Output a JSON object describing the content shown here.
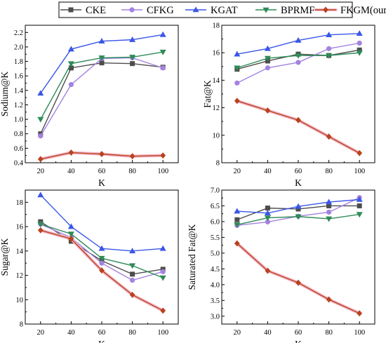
{
  "legend": {
    "entries": [
      {
        "name": "CKE",
        "color": "#4d4d4d",
        "marker": "square"
      },
      {
        "name": "CFKG",
        "color": "#a382e0",
        "marker": "circle"
      },
      {
        "name": "KGAT",
        "color": "#3a57e6",
        "marker": "triangle-up"
      },
      {
        "name": "BPRMF",
        "color": "#2e8b57",
        "marker": "triangle-down"
      },
      {
        "name": "FKGM(ours)",
        "color": "#b8431f",
        "marker": "diamond",
        "highlight": "#f5b8c8"
      }
    ]
  },
  "chart_data": [
    {
      "type": "line",
      "xlabel": "K",
      "ylabel": "Sodium@K",
      "x": [
        20,
        40,
        60,
        80,
        100
      ],
      "xlim": [
        10,
        110
      ],
      "ylim": [
        0.4,
        2.3
      ],
      "yticks": [
        0.4,
        0.6,
        0.8,
        1.0,
        1.2,
        1.4,
        1.6,
        1.8,
        2.0,
        2.2
      ],
      "ytick_labels": [
        "0.4",
        "0.6",
        "0.8",
        "1.0",
        "1.2",
        "1.4",
        "1.6",
        "1.8",
        "2.0",
        "2.2"
      ],
      "series": [
        {
          "name": "CKE",
          "values": [
            0.8,
            1.71,
            1.78,
            1.77,
            1.72
          ]
        },
        {
          "name": "CFKG",
          "values": [
            0.77,
            1.48,
            1.84,
            1.85,
            1.71
          ]
        },
        {
          "name": "KGAT",
          "values": [
            1.36,
            1.97,
            2.08,
            2.1,
            2.17
          ]
        },
        {
          "name": "BPRMF",
          "values": [
            1.0,
            1.77,
            1.85,
            1.86,
            1.93
          ]
        },
        {
          "name": "FKGM(ours)",
          "values": [
            0.45,
            0.54,
            0.52,
            0.49,
            0.5
          ]
        }
      ]
    },
    {
      "type": "line",
      "xlabel": "K",
      "ylabel": "Fat@K",
      "x": [
        20,
        40,
        60,
        80,
        100
      ],
      "xlim": [
        10,
        110
      ],
      "ylim": [
        8,
        18
      ],
      "yticks": [
        8,
        10,
        12,
        14,
        16,
        18
      ],
      "ytick_labels": [
        "8",
        "10",
        "12",
        "14",
        "16",
        "18"
      ],
      "series": [
        {
          "name": "CKE",
          "values": [
            14.8,
            15.4,
            15.9,
            15.8,
            16.2
          ]
        },
        {
          "name": "CFKG",
          "values": [
            13.8,
            14.9,
            15.3,
            16.3,
            16.7
          ]
        },
        {
          "name": "KGAT",
          "values": [
            15.9,
            16.3,
            16.9,
            17.3,
            17.4
          ]
        },
        {
          "name": "BPRMF",
          "values": [
            14.9,
            15.6,
            15.8,
            15.8,
            16.0
          ]
        },
        {
          "name": "FKGM(ours)",
          "values": [
            12.5,
            11.8,
            11.1,
            9.9,
            8.7
          ]
        }
      ]
    },
    {
      "type": "line",
      "xlabel": "K",
      "ylabel": "Sugar@K",
      "x": [
        20,
        40,
        60,
        80,
        100
      ],
      "xlim": [
        10,
        110
      ],
      "ylim": [
        8,
        19
      ],
      "yticks": [
        8,
        10,
        12,
        14,
        16,
        18
      ],
      "ytick_labels": [
        "8",
        "10",
        "12",
        "14",
        "16",
        "18"
      ],
      "series": [
        {
          "name": "CKE",
          "values": [
            16.4,
            14.8,
            13.2,
            12.1,
            12.5
          ]
        },
        {
          "name": "CFKG",
          "values": [
            16.2,
            15.1,
            13.0,
            11.6,
            12.3
          ]
        },
        {
          "name": "KGAT",
          "values": [
            18.6,
            16.0,
            14.2,
            14.0,
            14.2
          ]
        },
        {
          "name": "BPRMF",
          "values": [
            16.2,
            15.4,
            13.4,
            12.8,
            11.8
          ]
        },
        {
          "name": "FKGM(ours)",
          "values": [
            15.7,
            15.0,
            12.4,
            10.4,
            9.1
          ]
        }
      ]
    },
    {
      "type": "line",
      "xlabel": "K",
      "ylabel": "Saturated Fat@K",
      "x": [
        20,
        40,
        60,
        80,
        100
      ],
      "xlim": [
        10,
        110
      ],
      "ylim": [
        2.75,
        7.0
      ],
      "yticks": [
        3.0,
        3.5,
        4.0,
        4.5,
        5.0,
        5.5,
        6.0,
        6.5,
        7.0
      ],
      "ytick_labels": [
        "3.0",
        "3.5",
        "4.0",
        "4.5",
        "5.0",
        "5.5",
        "6.0",
        "6.5",
        "7.0"
      ],
      "series": [
        {
          "name": "CKE",
          "values": [
            6.06,
            6.43,
            6.4,
            6.5,
            6.5
          ]
        },
        {
          "name": "CFKG",
          "values": [
            5.88,
            5.99,
            6.17,
            6.3,
            6.76
          ]
        },
        {
          "name": "KGAT",
          "values": [
            6.33,
            6.27,
            6.48,
            6.62,
            6.7
          ]
        },
        {
          "name": "BPRMF",
          "values": [
            5.9,
            6.12,
            6.16,
            6.09,
            6.23
          ]
        },
        {
          "name": "FKGM(ours)",
          "values": [
            5.31,
            4.44,
            4.06,
            3.53,
            3.09
          ]
        }
      ]
    }
  ]
}
